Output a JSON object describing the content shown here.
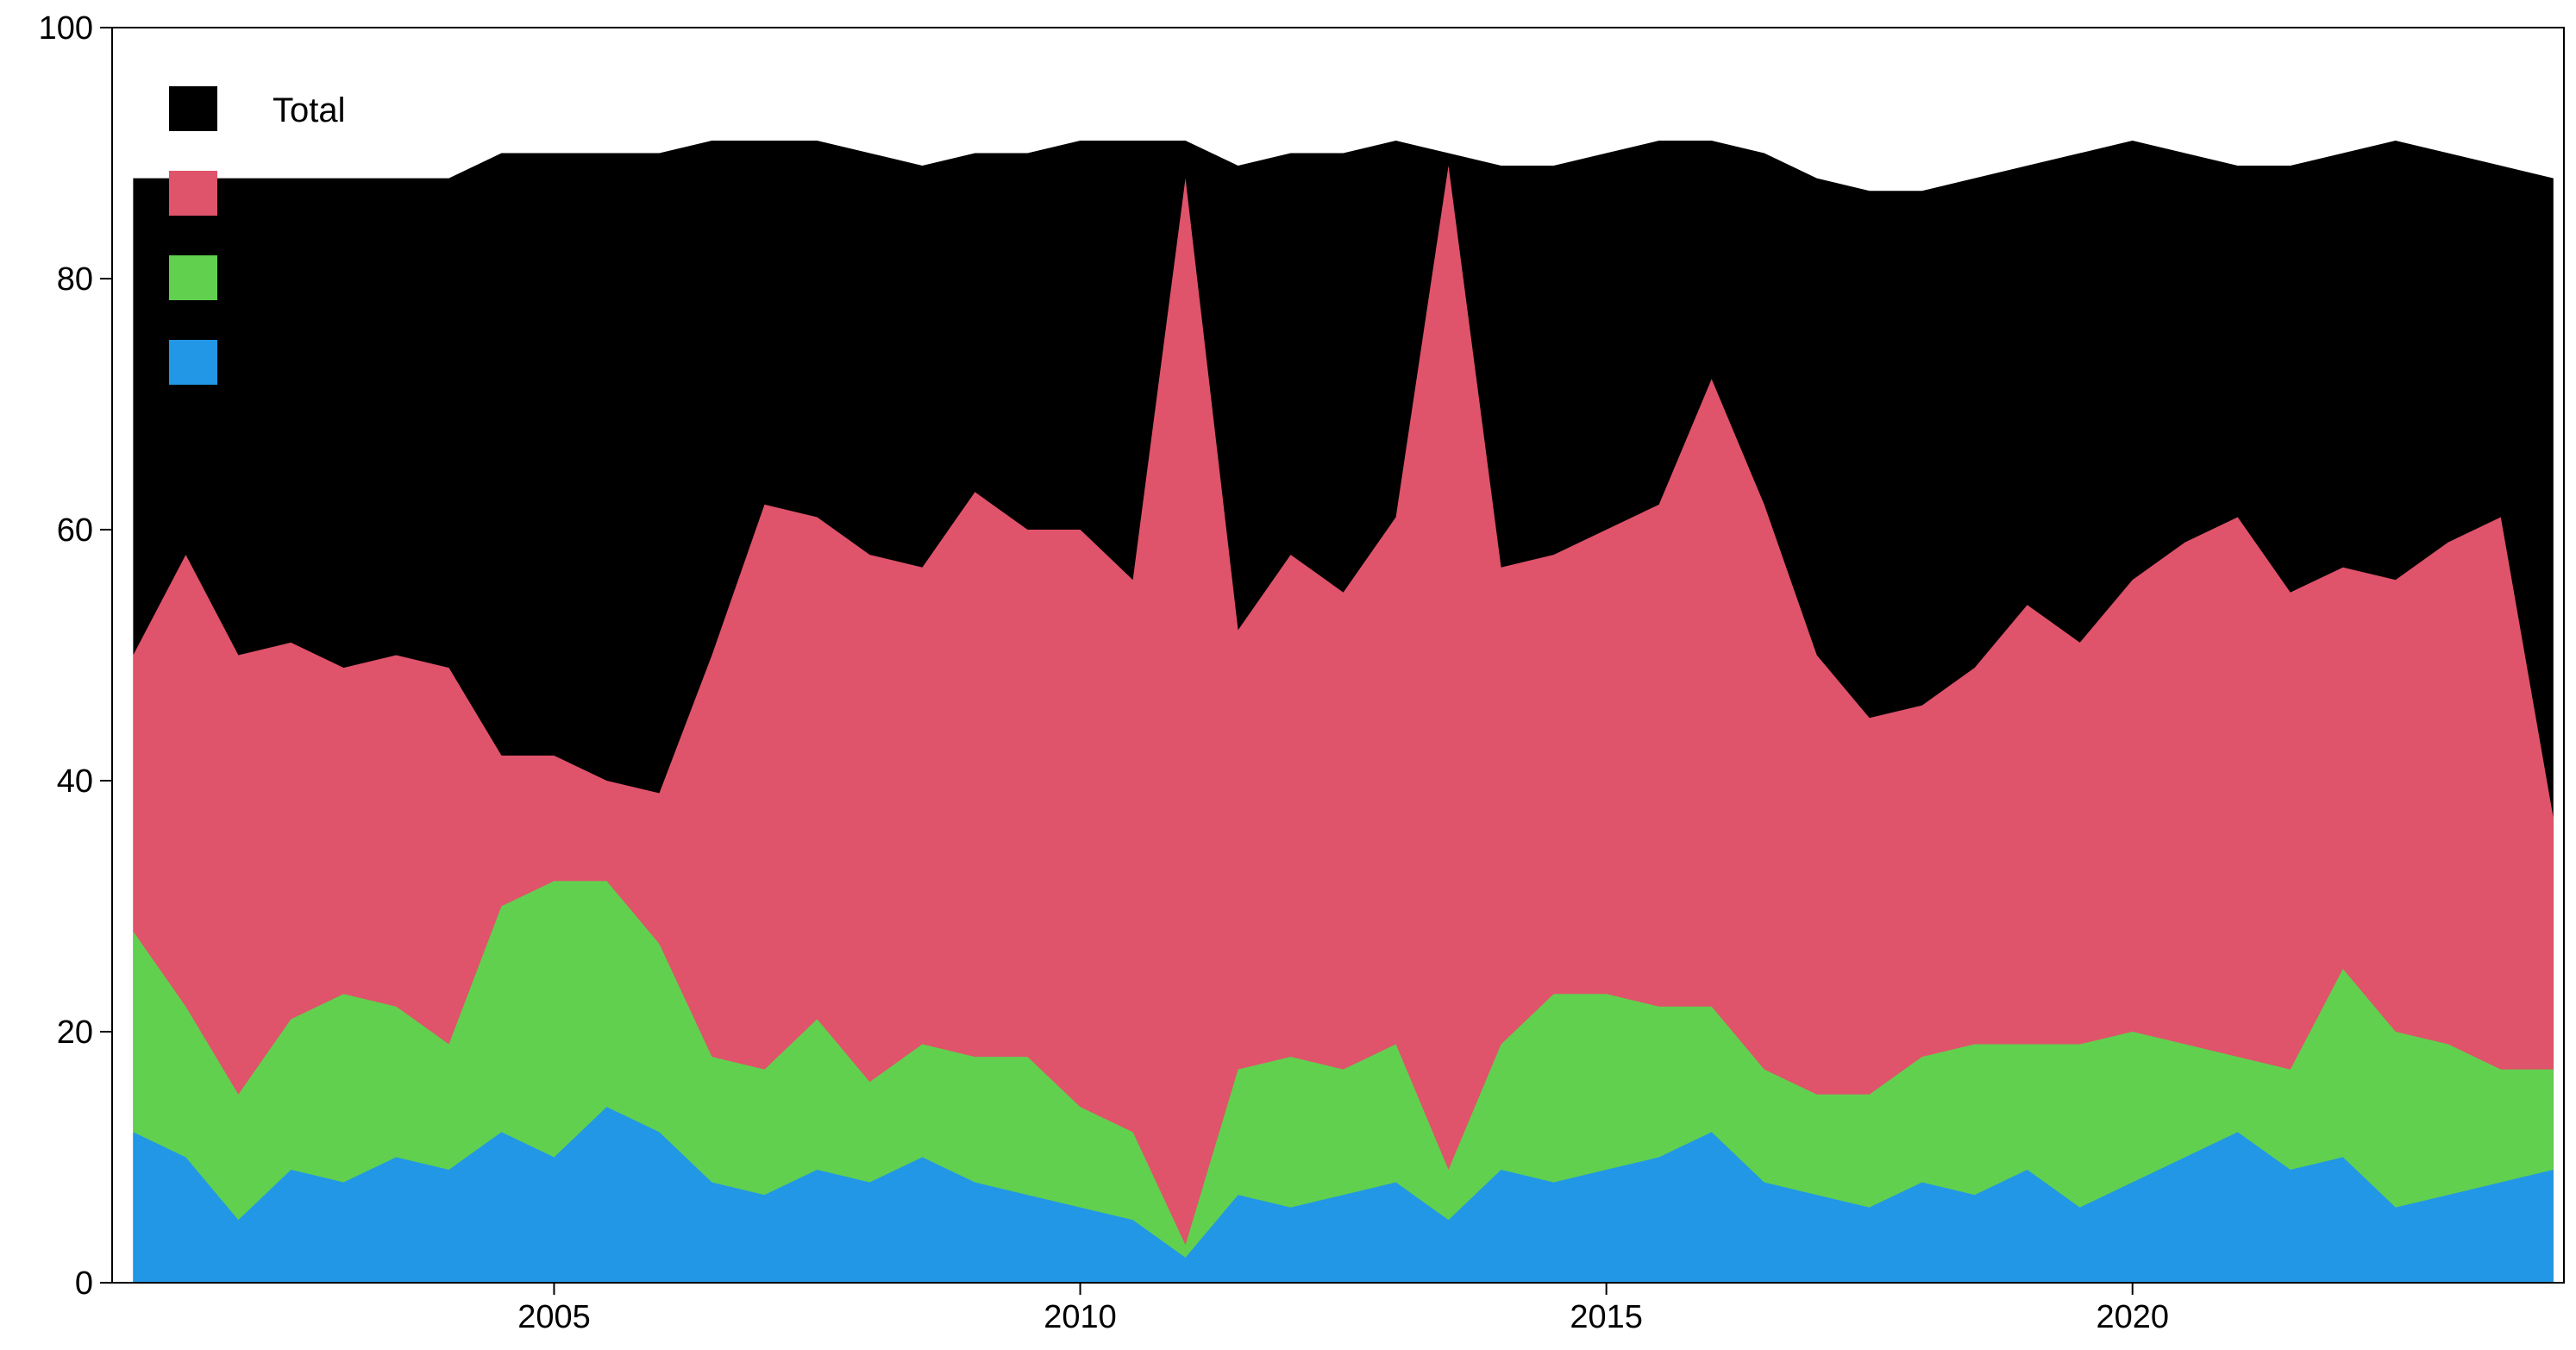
{
  "chart_data": {
    "type": "area",
    "stacked": true,
    "title": "",
    "xlabel": "",
    "ylabel": "",
    "xlim": [
      2000.8,
      2024.1
    ],
    "ylim": [
      0,
      100
    ],
    "x_ticks": [
      2005,
      2010,
      2015,
      2020
    ],
    "x_tick_labels": [
      "2005",
      "2010",
      "2015",
      "2020"
    ],
    "y_ticks": [
      0,
      20,
      40,
      60,
      80,
      100
    ],
    "y_tick_labels": [
      "0",
      "20",
      "40",
      "60",
      "80",
      "100"
    ],
    "grid": false,
    "legend": {
      "placement": "top-left",
      "entries": [
        {
          "label": "Total",
          "color": "#000000"
        },
        {
          "label": "",
          "color": "#DF536B"
        },
        {
          "label": "",
          "color": "#61D04F"
        },
        {
          "label": "",
          "color": "#2297E6"
        }
      ]
    },
    "x": [
      2001.0,
      2001.5,
      2002.0,
      2002.5,
      2003.0,
      2003.5,
      2004.0,
      2004.5,
      2005.0,
      2005.5,
      2006.0,
      2006.5,
      2007.0,
      2007.5,
      2008.0,
      2008.5,
      2009.0,
      2009.5,
      2010.0,
      2010.5,
      2011.0,
      2011.5,
      2012.0,
      2012.5,
      2013.0,
      2013.5,
      2014.0,
      2014.5,
      2015.0,
      2015.5,
      2016.0,
      2016.5,
      2017.0,
      2017.5,
      2018.0,
      2018.5,
      2019.0,
      2019.5,
      2020.0,
      2020.5,
      2021.0,
      2021.5,
      2022.0,
      2022.5,
      2023.0,
      2023.5,
      2024.0
    ],
    "series": [
      {
        "name": "",
        "color": "#2297E6",
        "values": [
          12,
          10,
          5,
          9,
          8,
          10,
          9,
          12,
          10,
          14,
          12,
          8,
          7,
          9,
          8,
          10,
          8,
          7,
          6,
          5,
          2,
          7,
          6,
          7,
          8,
          5,
          9,
          8,
          9,
          10,
          12,
          8,
          7,
          6,
          8,
          7,
          9,
          6,
          8,
          10,
          12,
          9,
          10,
          6,
          7,
          8,
          9
        ]
      },
      {
        "name": "",
        "color": "#61D04F",
        "values": [
          16,
          12,
          10,
          12,
          15,
          12,
          10,
          18,
          22,
          18,
          15,
          10,
          10,
          12,
          8,
          9,
          10,
          11,
          8,
          7,
          1,
          10,
          12,
          10,
          11,
          4,
          10,
          15,
          14,
          12,
          10,
          9,
          8,
          9,
          10,
          12,
          10,
          13,
          12,
          9,
          6,
          8,
          15,
          14,
          12,
          9,
          8
        ]
      },
      {
        "name": "",
        "color": "#DF536B",
        "values": [
          22,
          36,
          35,
          30,
          26,
          28,
          30,
          12,
          10,
          8,
          12,
          32,
          45,
          40,
          42,
          38,
          45,
          42,
          46,
          44,
          85,
          35,
          40,
          38,
          42,
          80,
          38,
          35,
          37,
          40,
          50,
          45,
          35,
          30,
          28,
          30,
          35,
          32,
          36,
          40,
          43,
          38,
          32,
          36,
          40,
          44,
          20
        ]
      },
      {
        "name": "Total",
        "color": "#000000",
        "values": [
          88,
          88,
          88,
          88,
          88,
          88,
          88,
          90,
          90,
          90,
          90,
          91,
          91,
          91,
          90,
          89,
          90,
          90,
          91,
          91,
          91,
          89,
          90,
          90,
          91,
          90,
          89,
          89,
          90,
          91,
          91,
          90,
          88,
          87,
          87,
          88,
          89,
          90,
          91,
          90,
          89,
          89,
          90,
          91,
          90,
          89,
          88
        ]
      }
    ]
  }
}
